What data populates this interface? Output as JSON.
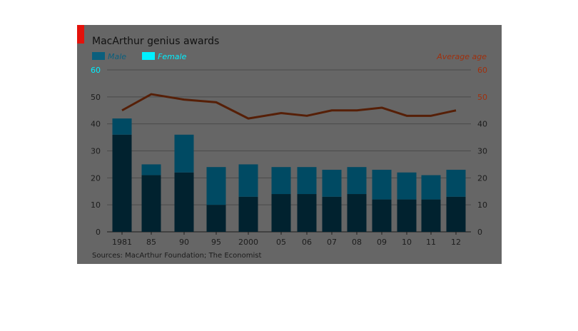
{
  "chart_data": {
    "type": "bar",
    "title": "MacArthur genius awards",
    "categories": [
      "1981",
      "85",
      "90",
      "95",
      "2000",
      "05",
      "06",
      "07",
      "08",
      "09",
      "10",
      "11",
      "12"
    ],
    "series": [
      {
        "name": "Male",
        "values": [
          36,
          21,
          22,
          10,
          13,
          14,
          14,
          13,
          14,
          12,
          12,
          12,
          13
        ],
        "color": "#01222f"
      },
      {
        "name": "Female",
        "values": [
          6,
          4,
          14,
          14,
          12,
          10,
          10,
          10,
          10,
          11,
          10,
          9,
          10
        ],
        "color": "#004a63"
      }
    ],
    "line_series": {
      "name": "Average age",
      "values": [
        45,
        51,
        49,
        48,
        42,
        44,
        43,
        45,
        45,
        46,
        43,
        43,
        45
      ],
      "color": "#561f07"
    },
    "ylim": [
      0,
      60
    ],
    "yticks": [
      0,
      10,
      20,
      30,
      40,
      50,
      60
    ],
    "grid": true,
    "stacked": true,
    "legend_placement": "top-left",
    "left_axis_label": "",
    "right_axis_label": "Average age",
    "source": "Sources: MacArthur Foundation; The Economist",
    "colors": {
      "background": "#666666",
      "gridline": "#4a4a4a",
      "tick_text": "#1c1c1c",
      "accent_red": "#e3120b",
      "legend_male": "#0b5f7d",
      "legend_female": "#00f0ff",
      "right_axis_text": "#a0300d"
    }
  }
}
